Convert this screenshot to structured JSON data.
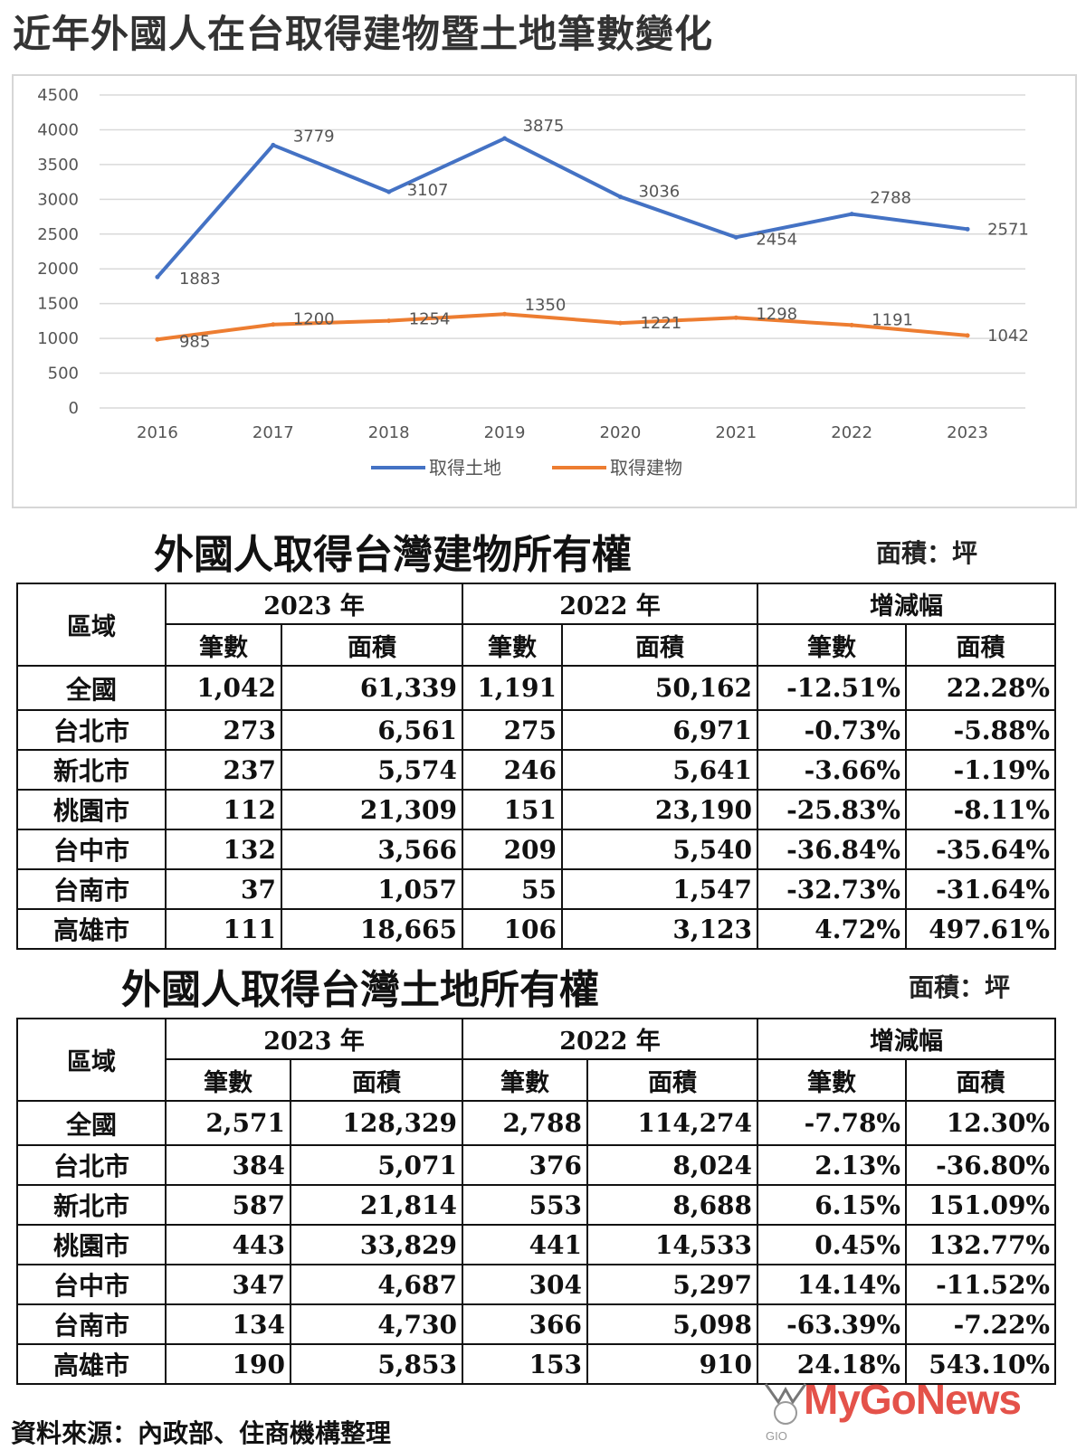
{
  "main_title": "近年外國人在台取得建物暨土地筆數變化",
  "chart_data": {
    "type": "line",
    "title": "近年外國人在台取得建物暨土地筆數變化",
    "categories": [
      "2016",
      "2017",
      "2018",
      "2019",
      "2020",
      "2021",
      "2022",
      "2023"
    ],
    "series": [
      {
        "name": "取得土地",
        "color": "#4472c4",
        "values": [
          1883,
          3779,
          3107,
          3875,
          3036,
          2454,
          2788,
          2571
        ]
      },
      {
        "name": "取得建物",
        "color": "#ed7d31",
        "values": [
          985,
          1200,
          1254,
          1350,
          1221,
          1298,
          1191,
          1042
        ]
      }
    ],
    "ylim": [
      0,
      4500
    ],
    "yticks": [
      0,
      500,
      1000,
      1500,
      2000,
      2500,
      3000,
      3500,
      4000,
      4500
    ],
    "grid": true,
    "legend": "bottom",
    "xlabel": "",
    "ylabel": ""
  },
  "building_section": {
    "title": "外國人取得台灣建物所有權",
    "unit": "面積：坪",
    "header": {
      "region": "區域",
      "year2023": "2023 年",
      "year2022": "2022 年",
      "change": "增減幅",
      "count": "筆數",
      "area": "面積"
    },
    "rows": [
      {
        "region": "全國",
        "c23": "1,042",
        "a23": "61,339",
        "c22": "1,191",
        "a22": "50,162",
        "cc": "-12.51%",
        "ca": "22.28%"
      },
      {
        "region": "台北市",
        "c23": "273",
        "a23": "6,561",
        "c22": "275",
        "a22": "6,971",
        "cc": "-0.73%",
        "ca": "-5.88%"
      },
      {
        "region": "新北市",
        "c23": "237",
        "a23": "5,574",
        "c22": "246",
        "a22": "5,641",
        "cc": "-3.66%",
        "ca": "-1.19%"
      },
      {
        "region": "桃園市",
        "c23": "112",
        "a23": "21,309",
        "c22": "151",
        "a22": "23,190",
        "cc": "-25.83%",
        "ca": "-8.11%"
      },
      {
        "region": "台中市",
        "c23": "132",
        "a23": "3,566",
        "c22": "209",
        "a22": "5,540",
        "cc": "-36.84%",
        "ca": "-35.64%"
      },
      {
        "region": "台南市",
        "c23": "37",
        "a23": "1,057",
        "c22": "55",
        "a22": "1,547",
        "cc": "-32.73%",
        "ca": "-31.64%"
      },
      {
        "region": "高雄市",
        "c23": "111",
        "a23": "18,665",
        "c22": "106",
        "a22": "3,123",
        "cc": "4.72%",
        "ca": "497.61%"
      }
    ]
  },
  "land_section": {
    "title": "外國人取得台灣土地所有權",
    "unit": "面積：坪",
    "header": {
      "region": "區域",
      "year2023": "2023 年",
      "year2022": "2022 年",
      "change": "增減幅",
      "count": "筆數",
      "area": "面積"
    },
    "rows": [
      {
        "region": "全國",
        "c23": "2,571",
        "a23": "128,329",
        "c22": "2,788",
        "a22": "114,274",
        "cc": "-7.78%",
        "ca": "12.30%"
      },
      {
        "region": "台北市",
        "c23": "384",
        "a23": "5,071",
        "c22": "376",
        "a22": "8,024",
        "cc": "2.13%",
        "ca": "-36.80%"
      },
      {
        "region": "新北市",
        "c23": "587",
        "a23": "21,814",
        "c22": "553",
        "a22": "8,688",
        "cc": "6.15%",
        "ca": "151.09%"
      },
      {
        "region": "桃園市",
        "c23": "443",
        "a23": "33,829",
        "c22": "441",
        "a22": "14,533",
        "cc": "0.45%",
        "ca": "132.77%"
      },
      {
        "region": "台中市",
        "c23": "347",
        "a23": "4,687",
        "c22": "304",
        "a22": "5,297",
        "cc": "14.14%",
        "ca": "-11.52%"
      },
      {
        "region": "台南市",
        "c23": "134",
        "a23": "4,730",
        "c22": "366",
        "a22": "5,098",
        "cc": "-63.39%",
        "ca": "-7.22%"
      },
      {
        "region": "高雄市",
        "c23": "190",
        "a23": "5,853",
        "c22": "153",
        "a22": "910",
        "cc": "24.18%",
        "ca": "543.10%"
      }
    ]
  },
  "source_note": "資料來源：內政部、住商機構整理",
  "watermark": {
    "text": "MyGoNews",
    "sub": "GIO"
  }
}
